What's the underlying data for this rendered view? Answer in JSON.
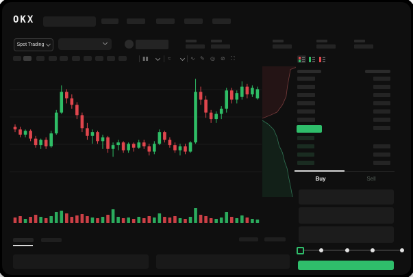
{
  "header": {
    "logo_text": "OKX",
    "nav_placeholder_count": 5
  },
  "subheader": {
    "market_selector_label": "Spot Trading",
    "stat_placeholder_count": 5
  },
  "chart_toolbar": {
    "timeframe_placeholder_count": 10,
    "active_timeframe_index": 1,
    "icons": [
      "candles-interval-icon",
      "indicator-icon",
      "line-type-icon",
      "draw-pencil-icon",
      "camera-icon",
      "settings-icon",
      "fullscreen-icon"
    ],
    "icon_glyphs": [
      "▮▮",
      "≈",
      "∿",
      "✎",
      "◎",
      "⊘",
      "⛶"
    ]
  },
  "order_book": {
    "layout_icons": [
      "book-both-icon",
      "book-bids-icon",
      "book-asks-icon"
    ],
    "ask_row_count": 6,
    "bid_row_count": 4,
    "last_price_color": "#2fbe6b"
  },
  "trade_form": {
    "tabs": [
      {
        "label": "Buy",
        "active": true
      },
      {
        "label": "Sell",
        "active": false
      }
    ],
    "input_placeholder_count": 3,
    "slider_stop_count": 5,
    "submit_color": "#2fbe6b"
  },
  "bottom_tabs": {
    "left_placeholder_count": 2,
    "right_placeholder_count": 2,
    "active_index": 0
  },
  "colors": {
    "up": "#2fbd66",
    "down": "#e0464d",
    "accent_green": "#2fbe6b"
  },
  "chart_data": {
    "type": "candlestick",
    "note": "skeleton chart, no axis labels visible; values normalized 0-100",
    "up_color": "#2fbd66",
    "down_color": "#e0464d",
    "grid": "horizontal-only",
    "candles": [
      [
        55,
        57,
        51,
        53
      ],
      [
        53,
        55,
        47,
        49
      ],
      [
        49,
        53,
        47,
        52
      ],
      [
        52,
        53,
        44,
        46
      ],
      [
        46,
        48,
        39,
        41
      ],
      [
        41,
        46,
        38,
        45
      ],
      [
        45,
        47,
        38,
        40
      ],
      [
        40,
        52,
        39,
        50
      ],
      [
        50,
        68,
        49,
        66
      ],
      [
        66,
        87,
        65,
        82
      ],
      [
        82,
        84,
        73,
        77
      ],
      [
        77,
        80,
        69,
        72
      ],
      [
        72,
        74,
        61,
        64
      ],
      [
        64,
        66,
        51,
        54
      ],
      [
        54,
        58,
        45,
        48
      ],
      [
        48,
        53,
        42,
        51
      ],
      [
        51,
        52,
        42,
        44
      ],
      [
        44,
        49,
        38,
        47
      ],
      [
        47,
        48,
        35,
        38
      ],
      [
        38,
        43,
        32,
        41
      ],
      [
        41,
        45,
        37,
        43
      ],
      [
        43,
        44,
        35,
        37
      ],
      [
        37,
        43,
        35,
        42
      ],
      [
        42,
        43,
        36,
        39
      ],
      [
        39,
        45,
        38,
        43
      ],
      [
        43,
        45,
        38,
        40
      ],
      [
        40,
        42,
        33,
        36
      ],
      [
        36,
        44,
        34,
        42
      ],
      [
        42,
        53,
        41,
        51
      ],
      [
        51,
        52,
        43,
        45
      ],
      [
        45,
        47,
        39,
        41
      ],
      [
        41,
        43,
        35,
        37
      ],
      [
        37,
        42,
        33,
        40
      ],
      [
        40,
        42,
        34,
        36
      ],
      [
        36,
        44,
        35,
        43
      ],
      [
        43,
        92,
        42,
        82
      ],
      [
        82,
        86,
        72,
        76
      ],
      [
        76,
        79,
        62,
        66
      ],
      [
        66,
        68,
        58,
        61
      ],
      [
        61,
        67,
        58,
        65
      ],
      [
        65,
        71,
        61,
        69
      ],
      [
        69,
        85,
        66,
        83
      ],
      [
        83,
        85,
        73,
        76
      ],
      [
        76,
        83,
        73,
        81
      ],
      [
        78,
        90,
        76,
        86
      ],
      [
        86,
        88,
        77,
        80
      ],
      [
        80,
        87,
        78,
        85
      ],
      [
        77,
        86,
        76,
        84
      ]
    ],
    "volumes": [
      8,
      10,
      6,
      9,
      12,
      9,
      7,
      10,
      16,
      18,
      14,
      9,
      11,
      13,
      10,
      8,
      7,
      9,
      12,
      20,
      9,
      7,
      8,
      6,
      9,
      7,
      10,
      8,
      14,
      9,
      8,
      10,
      7,
      6,
      9,
      22,
      12,
      10,
      7,
      6,
      8,
      16,
      9,
      7,
      11,
      8,
      6,
      5
    ],
    "depth": {
      "ask_line": [
        [
          1,
          0.02
        ],
        [
          0.84,
          0.06
        ],
        [
          0.8,
          0.2
        ],
        [
          0.75,
          0.38
        ],
        [
          0.71,
          0.58
        ],
        [
          0.6,
          0.74
        ],
        [
          0.44,
          0.88
        ],
        [
          0.24,
          0.94
        ],
        [
          0,
          1
        ]
      ],
      "bid_line": [
        [
          0,
          0
        ],
        [
          0.18,
          0.05
        ],
        [
          0.34,
          0.12
        ],
        [
          0.44,
          0.22
        ],
        [
          0.5,
          0.33
        ],
        [
          0.6,
          0.42
        ],
        [
          0.66,
          0.53
        ],
        [
          0.74,
          0.63
        ],
        [
          0.78,
          0.73
        ],
        [
          0.84,
          0.86
        ],
        [
          0.9,
          1
        ]
      ],
      "ask_fill": "rgba(224,70,77,0.10)",
      "ask_stroke": "rgba(235,110,110,0.45)",
      "bid_fill": "rgba(47,190,107,0.10)",
      "bid_stroke": "rgba(80,210,150,0.5)"
    }
  }
}
